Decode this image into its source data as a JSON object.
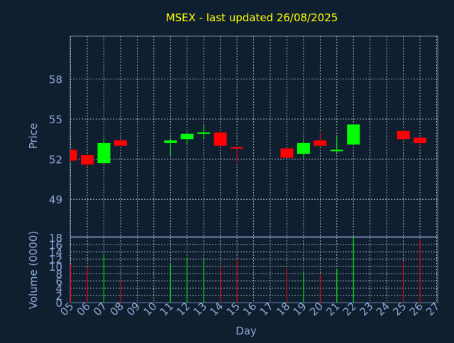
{
  "title": "MSEX - last updated 26/08/2025",
  "colors": {
    "background": "#0f1f30",
    "title": "#ffff00",
    "axis_text": "#8fa8d8",
    "grid": "#c8d0d8",
    "frame": "#6f87a8",
    "up": "#00ff00",
    "down": "#ff0000"
  },
  "chart_data": {
    "type": "candlestick",
    "xlabel": "Day",
    "x_tick_labels": [
      "05",
      "06",
      "07",
      "08",
      "09",
      "10",
      "11",
      "12",
      "13",
      "14",
      "15",
      "16",
      "17",
      "18",
      "19",
      "20",
      "21",
      "22",
      "23",
      "24",
      "25",
      "26",
      "27"
    ],
    "price": {
      "ylabel": "Price",
      "ylim": [
        46.2,
        61.2
      ],
      "ticks": [
        49,
        52,
        55,
        58
      ]
    },
    "volume": {
      "ylabel": "Volume (0000)",
      "ylim": [
        0,
        18
      ],
      "ticks": [
        0,
        2,
        4,
        6,
        8,
        10,
        12,
        14,
        16,
        18
      ]
    },
    "candles": [
      {
        "day": "05",
        "open": 52.7,
        "high": 52.7,
        "low": 51.8,
        "close": 51.9,
        "volume": 10.5
      },
      {
        "day": "06",
        "open": 52.3,
        "high": 52.3,
        "low": 51.4,
        "close": 51.6,
        "volume": 9.8
      },
      {
        "day": "07",
        "open": 51.7,
        "high": 53.5,
        "low": 51.7,
        "close": 53.2,
        "volume": 13.5
      },
      {
        "day": "08",
        "open": 53.4,
        "high": 53.5,
        "low": 53.0,
        "close": 53.0,
        "volume": 6.5
      },
      {
        "day": "11",
        "open": 53.2,
        "high": 53.6,
        "low": 52.3,
        "close": 53.4,
        "volume": 10.8
      },
      {
        "day": "12",
        "open": 53.5,
        "high": 53.9,
        "low": 53.1,
        "close": 53.9,
        "volume": 12.5
      },
      {
        "day": "13",
        "open": 53.9,
        "high": 54.5,
        "low": 53.5,
        "close": 54.0,
        "volume": 12.3
      },
      {
        "day": "14",
        "open": 54.0,
        "high": 54.0,
        "low": 52.9,
        "close": 53.0,
        "volume": 10.1
      },
      {
        "day": "15",
        "open": 52.9,
        "high": 52.9,
        "low": 51.8,
        "close": 52.8,
        "volume": 11.8
      },
      {
        "day": "18",
        "open": 52.8,
        "high": 52.8,
        "low": 52.1,
        "close": 52.1,
        "volume": 9.4
      },
      {
        "day": "19",
        "open": 52.4,
        "high": 53.4,
        "low": 52.1,
        "close": 53.2,
        "volume": 8.0
      },
      {
        "day": "20",
        "open": 53.4,
        "high": 54.0,
        "low": 53.0,
        "close": 53.0,
        "volume": 7.9
      },
      {
        "day": "21",
        "open": 52.7,
        "high": 53.7,
        "low": 52.5,
        "close": 52.7,
        "volume": 9.4
      },
      {
        "day": "22",
        "open": 53.1,
        "high": 54.6,
        "low": 53.1,
        "close": 54.6,
        "volume": 18.0
      },
      {
        "day": "25",
        "open": 54.1,
        "high": 54.2,
        "low": 53.4,
        "close": 53.5,
        "volume": 11.0
      },
      {
        "day": "26",
        "open": 53.6,
        "high": 53.7,
        "low": 52.9,
        "close": 53.2,
        "volume": 17.2
      }
    ]
  }
}
